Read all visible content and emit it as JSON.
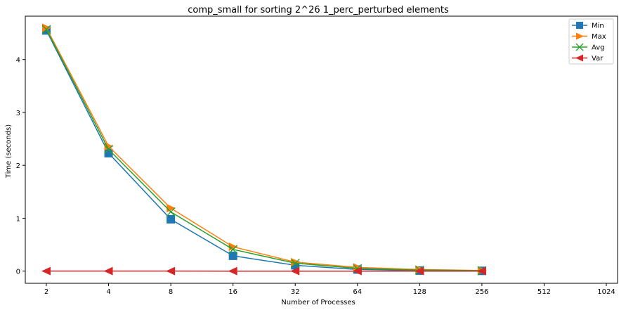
{
  "chart_data": {
    "type": "line",
    "title": "comp_small for sorting 2^26 1_perc_perturbed elements",
    "xlabel": "Number of Processes",
    "ylabel": "Time (seconds)",
    "x_scale": "log2",
    "x_ticks": [
      2,
      4,
      8,
      16,
      32,
      64,
      128,
      256,
      512,
      1024
    ],
    "x_tick_labels": [
      "2",
      "4",
      "8",
      "16",
      "32",
      "64",
      "128",
      "256",
      "512",
      "1024"
    ],
    "y_ticks": [
      0,
      1,
      2,
      3,
      4
    ],
    "y_tick_labels": [
      "0",
      "1",
      "2",
      "3",
      "4"
    ],
    "ylim": [
      -0.23,
      4.82
    ],
    "grid": false,
    "legend_position": "top-right",
    "x": [
      2,
      4,
      8,
      16,
      32,
      64,
      128,
      256
    ],
    "series": [
      {
        "name": "Min",
        "color": "#1f77b4",
        "marker": "square",
        "values": [
          4.55,
          2.23,
          0.98,
          0.29,
          0.11,
          0.03,
          0.01,
          0.005
        ]
      },
      {
        "name": "Max",
        "color": "#ff7f0e",
        "marker": "triangle-right",
        "values": [
          4.6,
          2.36,
          1.19,
          0.46,
          0.17,
          0.07,
          0.03,
          0.012
        ]
      },
      {
        "name": "Avg",
        "color": "#2ca02c",
        "marker": "x",
        "values": [
          4.57,
          2.3,
          1.12,
          0.41,
          0.15,
          0.05,
          0.02,
          0.009
        ]
      },
      {
        "name": "Var",
        "color": "#d62728",
        "marker": "triangle-left",
        "values": [
          0.001,
          0.001,
          0.001,
          0.0005,
          0.0002,
          0.0001,
          0.0001,
          0.0001
        ]
      }
    ]
  }
}
